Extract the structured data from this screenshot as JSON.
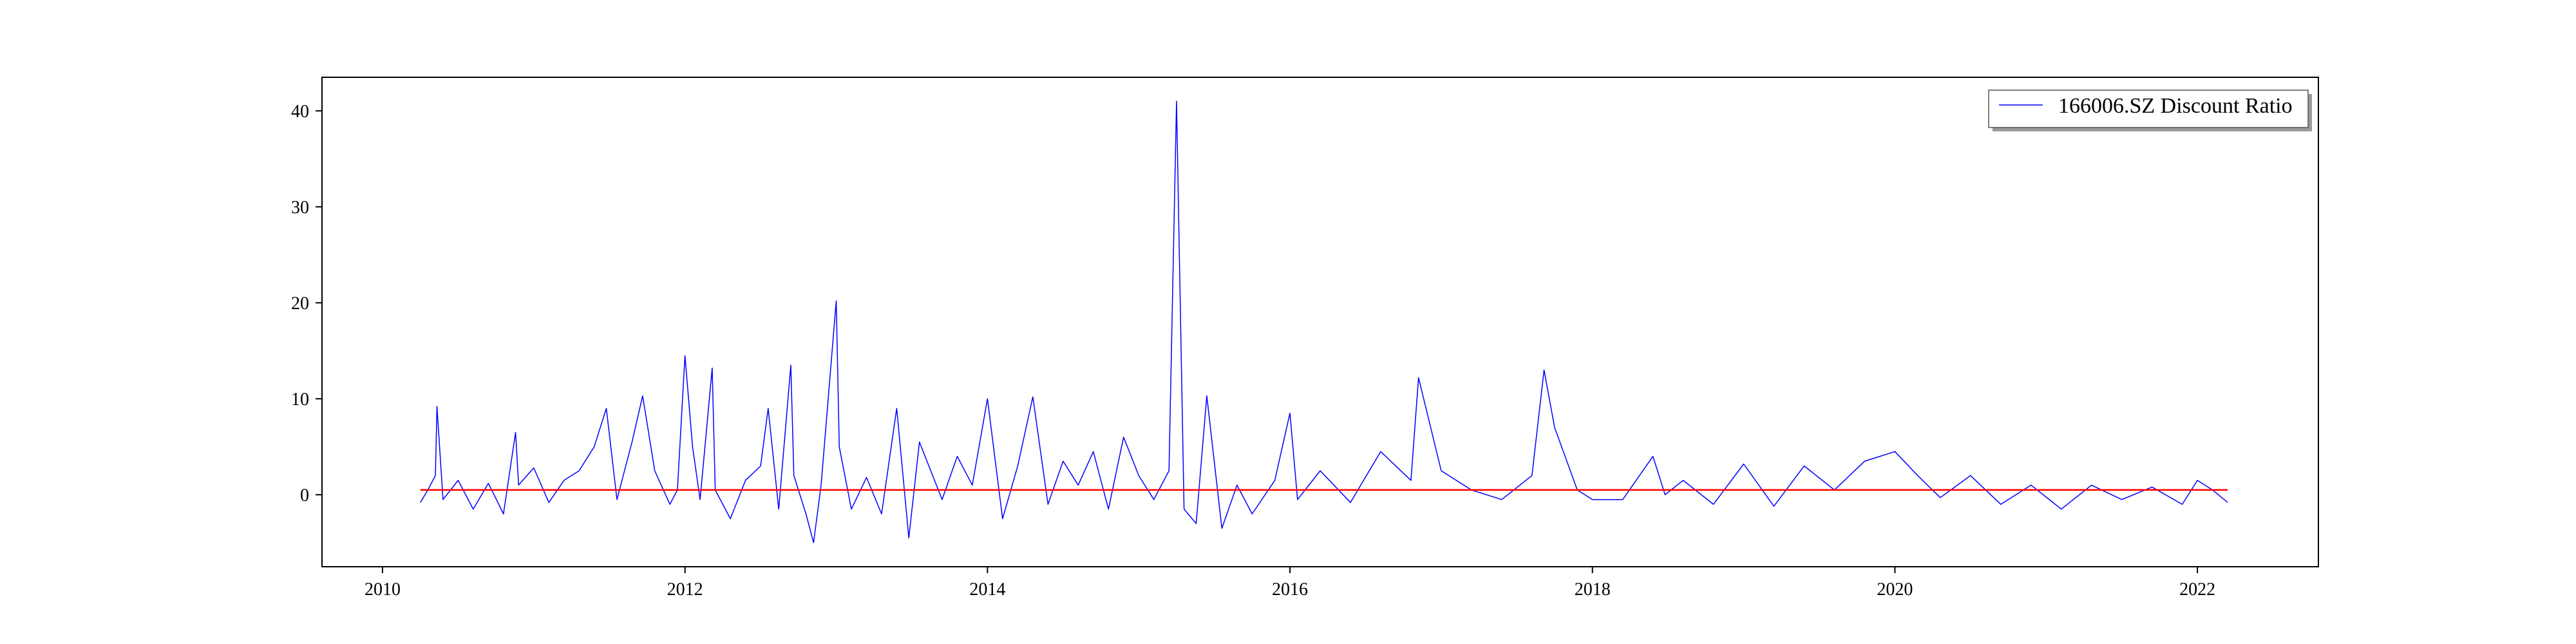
{
  "chart_data": {
    "type": "line",
    "title": "",
    "xlabel": "",
    "ylabel": "",
    "x_range": [
      "2009-10-01",
      "2022-10-01"
    ],
    "xlim": [
      2009.6,
      2022.8
    ],
    "ylim": [
      -7.5,
      43.5
    ],
    "x_ticks": [
      2010,
      2012,
      2014,
      2016,
      2018,
      2020,
      2022
    ],
    "x_tick_labels": [
      "2010",
      "2012",
      "2014",
      "2016",
      "2018",
      "2020",
      "2022"
    ],
    "y_ticks": [
      0,
      10,
      20,
      30,
      40
    ],
    "y_tick_labels": [
      "0",
      "10",
      "20",
      "30",
      "40"
    ],
    "grid": false,
    "legend": {
      "position": "upper right",
      "entries": [
        "166006.SZ Discount Ratio"
      ]
    },
    "colors": {
      "series": "#0000ff",
      "reference_line": "#ff0000"
    },
    "series": [
      {
        "name": "166006.SZ Discount Ratio",
        "color": "#0000ff",
        "x": [
          2010.25,
          2010.3,
          2010.35,
          2010.36,
          2010.4,
          2010.5,
          2010.6,
          2010.7,
          2010.8,
          2010.88,
          2010.9,
          2011.0,
          2011.1,
          2011.2,
          2011.3,
          2011.4,
          2011.48,
          2011.55,
          2011.65,
          2011.72,
          2011.8,
          2011.9,
          2011.95,
          2012.0,
          2012.05,
          2012.1,
          2012.18,
          2012.2,
          2012.3,
          2012.4,
          2012.5,
          2012.55,
          2012.62,
          2012.7,
          2012.72,
          2012.8,
          2012.85,
          2012.9,
          2013.0,
          2013.02,
          2013.1,
          2013.2,
          2013.3,
          2013.4,
          2013.48,
          2013.55,
          2013.6,
          2013.7,
          2013.8,
          2013.9,
          2014.0,
          2014.1,
          2014.2,
          2014.3,
          2014.4,
          2014.5,
          2014.6,
          2014.7,
          2014.8,
          2014.9,
          2015.0,
          2015.1,
          2015.2,
          2015.25,
          2015.3,
          2015.38,
          2015.45,
          2015.55,
          2015.65,
          2015.75,
          2015.9,
          2016.0,
          2016.05,
          2016.2,
          2016.4,
          2016.6,
          2016.8,
          2016.85,
          2017.0,
          2017.2,
          2017.4,
          2017.6,
          2017.68,
          2017.75,
          2017.9,
          2018.0,
          2018.2,
          2018.4,
          2018.48,
          2018.6,
          2018.8,
          2019.0,
          2019.2,
          2019.4,
          2019.6,
          2019.8,
          2020.0,
          2020.15,
          2020.3,
          2020.5,
          2020.7,
          2020.9,
          2021.1,
          2021.3,
          2021.5,
          2021.7,
          2021.9,
          2022.0,
          2022.1,
          2022.2
        ],
        "values": [
          -0.8,
          0.5,
          2.0,
          9.2,
          -0.5,
          1.5,
          -1.5,
          1.2,
          -2.0,
          6.5,
          1.0,
          2.8,
          -0.8,
          1.5,
          2.5,
          5.0,
          9.0,
          -0.5,
          5.5,
          10.3,
          2.5,
          -1.0,
          0.5,
          14.5,
          5.0,
          -0.5,
          13.2,
          0.5,
          -2.5,
          1.5,
          3.0,
          9.0,
          -1.5,
          13.5,
          2.0,
          -2.0,
          -5.0,
          1.0,
          20.2,
          5.0,
          -1.5,
          1.8,
          -2.0,
          9.0,
          -4.5,
          5.5,
          3.5,
          -0.5,
          4.0,
          1.0,
          10.0,
          -2.5,
          3.0,
          10.2,
          -1.0,
          3.5,
          1.0,
          4.5,
          -1.5,
          6.0,
          2.0,
          -0.5,
          2.5,
          41.0,
          -1.5,
          -3.0,
          10.3,
          -3.5,
          1.0,
          -2.0,
          1.5,
          8.5,
          -0.5,
          2.5,
          -0.8,
          4.5,
          1.5,
          12.2,
          2.5,
          0.5,
          -0.5,
          2.0,
          13.0,
          7.0,
          0.5,
          -0.5,
          -0.5,
          4.0,
          0.0,
          1.5,
          -1.0,
          3.2,
          -1.2,
          3.0,
          0.5,
          3.5,
          4.5,
          2.0,
          -0.3,
          2.0,
          -1.0,
          1.0,
          -1.5,
          1.0,
          -0.5,
          0.8,
          -1.0,
          1.5,
          0.5,
          -0.8
        ]
      }
    ],
    "reference_line": {
      "value": 0.5,
      "x_start": 2010.25,
      "x_end": 2022.2,
      "color": "#ff0000"
    }
  }
}
